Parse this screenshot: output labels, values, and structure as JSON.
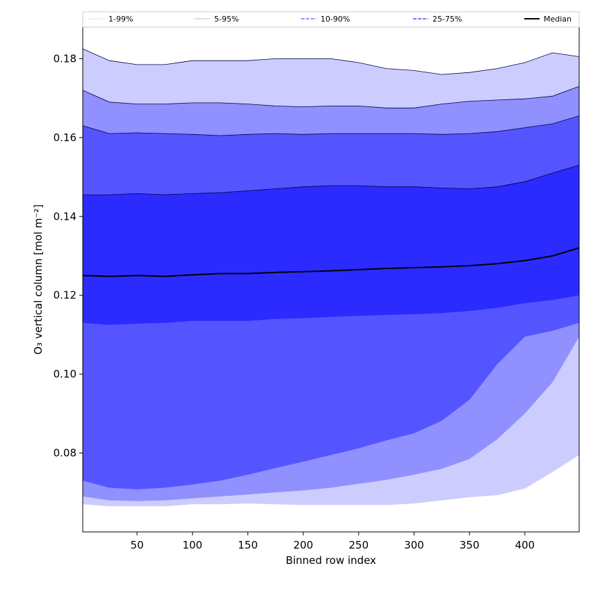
{
  "chart_data": {
    "type": "area",
    "title": "",
    "xlabel": "Binned row index",
    "ylabel": "O₃ vertical column [mol m⁻²]",
    "xlim": [
      1,
      449
    ],
    "ylim": [
      0.06,
      0.188
    ],
    "x_ticks": [
      50,
      100,
      150,
      200,
      250,
      300,
      350,
      400
    ],
    "y_ticks": [
      0.08,
      0.1,
      0.12,
      0.14,
      0.16,
      0.18
    ],
    "y_tick_labels": [
      "0.08",
      "0.10",
      "0.12",
      "0.14",
      "0.16",
      "0.18"
    ],
    "grid": false,
    "legend_position": "top",
    "legend": [
      {
        "label": "1-99%",
        "style": "dotted",
        "color": "#ccccff"
      },
      {
        "label": "5-95%",
        "style": "dotted",
        "color": "#9090ff"
      },
      {
        "label": "10-90%",
        "style": "dashed",
        "color": "#5555ff"
      },
      {
        "label": "25-75%",
        "style": "dashed",
        "color": "#2b2bff"
      },
      {
        "label": "Median",
        "style": "solid",
        "color": "#000000"
      }
    ],
    "x": [
      1,
      25,
      50,
      75,
      100,
      125,
      150,
      175,
      200,
      225,
      250,
      275,
      300,
      325,
      350,
      375,
      400,
      425,
      449
    ],
    "bands": [
      {
        "name": "1-99%",
        "color": "#ccccff",
        "lower": [
          0.067,
          0.0665,
          0.0665,
          0.0665,
          0.067,
          0.067,
          0.0672,
          0.067,
          0.0668,
          0.0668,
          0.0668,
          0.0668,
          0.0672,
          0.068,
          0.0688,
          0.0693,
          0.071,
          0.0752,
          0.0795
        ],
        "upper": [
          0.1825,
          0.1795,
          0.1785,
          0.1785,
          0.1795,
          0.1795,
          0.1795,
          0.18,
          0.18,
          0.18,
          0.179,
          0.1775,
          0.177,
          0.176,
          0.1765,
          0.1775,
          0.179,
          0.1815,
          0.1805
        ]
      },
      {
        "name": "5-95%",
        "color": "#9090ff",
        "lower": [
          0.069,
          0.068,
          0.0678,
          0.068,
          0.0685,
          0.069,
          0.0695,
          0.07,
          0.0705,
          0.0712,
          0.0722,
          0.0732,
          0.0745,
          0.076,
          0.0785,
          0.0835,
          0.09,
          0.098,
          0.1095
        ],
        "upper": [
          0.172,
          0.169,
          0.1685,
          0.1685,
          0.1688,
          0.1688,
          0.1685,
          0.168,
          0.1678,
          0.168,
          0.168,
          0.1675,
          0.1675,
          0.1685,
          0.1692,
          0.1695,
          0.1698,
          0.1705,
          0.173
        ]
      },
      {
        "name": "10-90%",
        "color": "#5555ff",
        "lower": [
          0.073,
          0.0712,
          0.0708,
          0.0712,
          0.072,
          0.073,
          0.0745,
          0.0762,
          0.0778,
          0.0795,
          0.0812,
          0.0832,
          0.085,
          0.0882,
          0.0935,
          0.1025,
          0.1095,
          0.111,
          0.113
        ],
        "upper": [
          0.163,
          0.161,
          0.1612,
          0.161,
          0.1608,
          0.1605,
          0.1608,
          0.161,
          0.1608,
          0.161,
          0.161,
          0.161,
          0.161,
          0.1608,
          0.161,
          0.1615,
          0.1625,
          0.1635,
          0.1655
        ]
      },
      {
        "name": "25-75%",
        "color": "#2b2bff",
        "lower": [
          0.113,
          0.1125,
          0.1128,
          0.113,
          0.1135,
          0.1135,
          0.1135,
          0.114,
          0.1142,
          0.1145,
          0.1148,
          0.115,
          0.1152,
          0.1155,
          0.116,
          0.1168,
          0.118,
          0.1188,
          0.12
        ],
        "upper": [
          0.1455,
          0.1455,
          0.1458,
          0.1455,
          0.1458,
          0.146,
          0.1465,
          0.147,
          0.1475,
          0.1478,
          0.1478,
          0.1475,
          0.1475,
          0.1472,
          0.147,
          0.1475,
          0.1488,
          0.151,
          0.153
        ]
      }
    ],
    "median": {
      "name": "Median",
      "color": "#000000",
      "values": [
        0.125,
        0.1248,
        0.125,
        0.1248,
        0.1252,
        0.1255,
        0.1255,
        0.1258,
        0.126,
        0.1262,
        0.1265,
        0.1268,
        0.127,
        0.1272,
        0.1275,
        0.128,
        0.1288,
        0.13,
        0.132
      ]
    }
  }
}
